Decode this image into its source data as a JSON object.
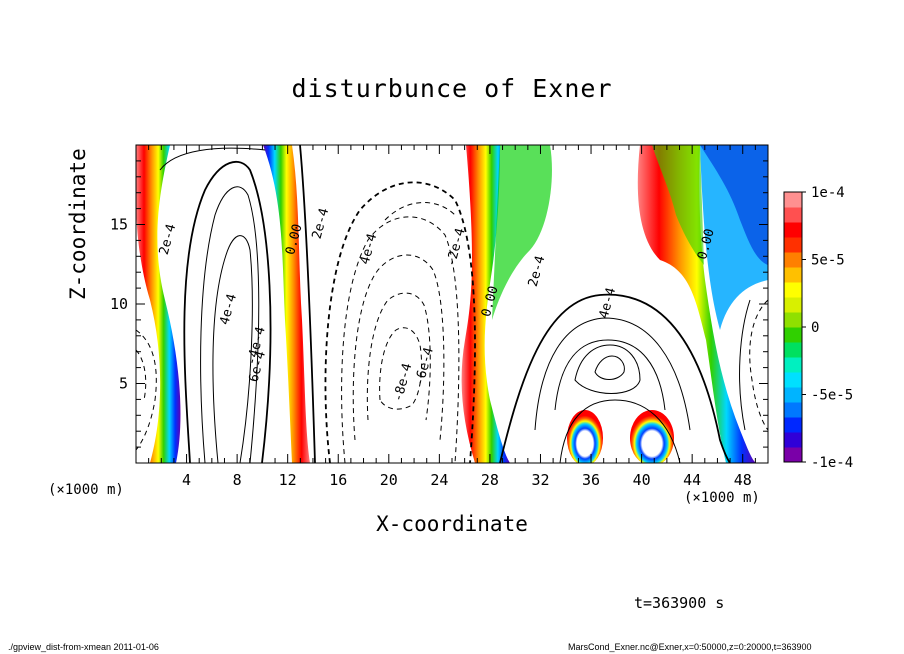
{
  "chart_data": {
    "type": "contour",
    "title": "disturbunce of Exner",
    "xlabel": "X-coordinate",
    "ylabel": "Z-coordinate",
    "x_unit_left": "(×1000 m)",
    "x_unit_right": "(×1000 m)",
    "xlim": [
      0,
      50
    ],
    "ylim": [
      0,
      20
    ],
    "xticks": [
      4,
      8,
      12,
      16,
      20,
      24,
      28,
      32,
      36,
      40,
      44,
      48
    ],
    "yticks": [
      5,
      10,
      15
    ],
    "colorbar": {
      "range": [
        -0.0001,
        0.0001
      ],
      "tick_labels": [
        "1e-4",
        "5e-5",
        "0",
        "-5e-5",
        "-1e-4"
      ],
      "tick_values": [
        0.0001,
        5e-05,
        0,
        -5e-05,
        -0.0001
      ],
      "colors": [
        "#7a00a8",
        "#3000d8",
        "#0028ff",
        "#0078ff",
        "#00b4ff",
        "#00e0ff",
        "#00f0c0",
        "#00e060",
        "#30d000",
        "#90e000",
        "#d8f000",
        "#ffff00",
        "#ffc000",
        "#ff8000",
        "#ff3000",
        "#ff0000",
        "#ff5050",
        "#ff9090"
      ]
    },
    "contour_labels": [
      {
        "text": "2e-4",
        "x": 2.8,
        "y": 14.0
      },
      {
        "text": "0.00",
        "x": 12.8,
        "y": 14.0
      },
      {
        "text": "2e-4",
        "x": 14.9,
        "y": 15.0
      },
      {
        "text": "4e-4",
        "x": 18.7,
        "y": 13.4
      },
      {
        "text": "-2e-4",
        "x": 25.6,
        "y": 13.5
      },
      {
        "text": "4e-4",
        "x": 7.6,
        "y": 9.6
      },
      {
        "text": "-4e-4",
        "x": 9.8,
        "y": 7.3
      },
      {
        "text": "6e-4",
        "x": 9.9,
        "y": 6.0
      },
      {
        "text": "-8e-4",
        "x": 21.4,
        "y": 5.0
      },
      {
        "text": "-6e-4",
        "x": 23.1,
        "y": 6.0
      },
      {
        "text": "0.00",
        "x": 28.3,
        "y": 10.1
      },
      {
        "text": "2e-4",
        "x": 32.0,
        "y": 12.0
      },
      {
        "text": "4e-4",
        "x": 37.6,
        "y": 10.0
      },
      {
        "text": "0.00",
        "x": 45.4,
        "y": 13.7
      }
    ],
    "time_label": "t=363900 s"
  },
  "footer": {
    "left": "./gpview_dist-from-xmean   2011-01-06",
    "right": "MarsCond_Exner.nc@Exner,x=0:50000,z=0:20000,t=363900"
  }
}
